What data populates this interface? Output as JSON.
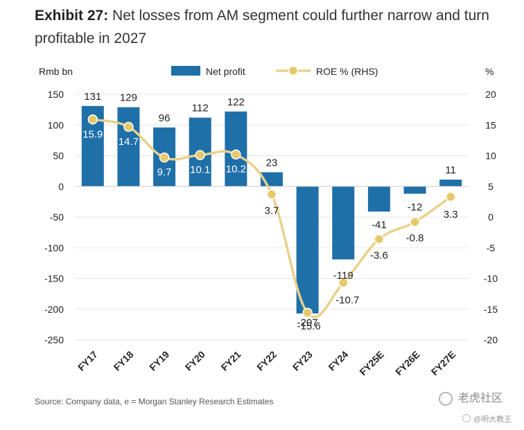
{
  "title": {
    "label": "Exhibit 27:",
    "text": "Net losses from AM segment could further narrow and turn profitable in 2027"
  },
  "source": "Source: Company data, e = Morgan Stanley Research Estimates",
  "watermark": {
    "text": "老虎社区",
    "sub": "@明大教王"
  },
  "colors": {
    "bar": "#1f6fa8",
    "line": "#e8d18a",
    "marker": "#e6c96c",
    "grid": "#e5e5e5",
    "text": "#222222"
  },
  "chart_data": {
    "type": "bar",
    "categories": [
      "FY17",
      "FY18",
      "FY19",
      "FY20",
      "FY21",
      "FY22",
      "FY23",
      "FY24",
      "FY25E",
      "FY26E",
      "FY27E"
    ],
    "series": [
      {
        "name": "Net profit",
        "type": "bar",
        "axis": "left",
        "values": [
          131,
          129,
          96,
          112,
          122,
          23,
          -207,
          -119,
          -41,
          -12,
          11
        ],
        "labels": [
          "131",
          "129",
          "96",
          "112",
          "122",
          "23",
          "-207",
          "-119",
          "-41",
          "-12",
          "11"
        ]
      },
      {
        "name": "ROE % (RHS)",
        "type": "line",
        "axis": "right",
        "values": [
          15.9,
          14.7,
          9.7,
          10.1,
          10.2,
          3.7,
          -15.6,
          -10.7,
          -3.6,
          -0.8,
          3.3
        ],
        "labels": [
          "15.9",
          "14.7",
          "9.7",
          "10.1",
          "10.2",
          "3.7",
          "-15.6",
          "-10.7",
          "-3.6",
          "-0.8",
          "3.3"
        ]
      }
    ],
    "ylabel": "Rmb bn",
    "y2label": "%",
    "ylim": [
      -250,
      150
    ],
    "y2lim": [
      -20,
      20
    ],
    "yticks": [
      150,
      100,
      50,
      0,
      -50,
      -100,
      -150,
      -200,
      -250
    ],
    "y2ticks": [
      20,
      15,
      10,
      5,
      0,
      -5,
      -10,
      -15,
      -20
    ],
    "grid": true,
    "legend": "top"
  }
}
